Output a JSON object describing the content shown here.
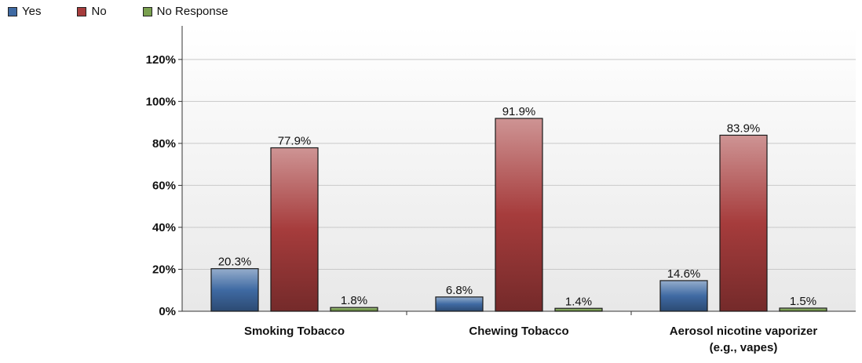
{
  "chart_data": {
    "type": "bar",
    "categories": [
      [
        "Smoking Tobacco"
      ],
      [
        "Chewing Tobacco"
      ],
      [
        "Aerosol nicotine vaporizer",
        "(e.g., vapes)"
      ]
    ],
    "series": [
      {
        "name": "Yes",
        "values": [
          20.3,
          6.8,
          14.6
        ],
        "color": "#3f6aa3"
      },
      {
        "name": "No",
        "values": [
          77.9,
          91.9,
          83.9
        ],
        "color": "#a63c3c"
      },
      {
        "name": "No Response",
        "values": [
          1.8,
          1.4,
          1.5
        ],
        "color": "#79a04f"
      }
    ],
    "data_labels": [
      [
        "20.3%",
        "6.8%",
        "14.6%"
      ],
      [
        "77.9%",
        "91.9%",
        "83.9%"
      ],
      [
        "1.8%",
        "1.4%",
        "1.5%"
      ]
    ],
    "y_ticks": [
      {
        "value": 0,
        "label": "0%"
      },
      {
        "value": 20,
        "label": "20%"
      },
      {
        "value": 40,
        "label": "40%"
      },
      {
        "value": 60,
        "label": "60%"
      },
      {
        "value": 80,
        "label": "80%"
      },
      {
        "value": 100,
        "label": "100%"
      },
      {
        "value": 120,
        "label": "120%"
      }
    ],
    "ylim": [
      0,
      136
    ],
    "grid": true,
    "legend_position": "top-left",
    "title": "",
    "xlabel": "",
    "ylabel": ""
  }
}
